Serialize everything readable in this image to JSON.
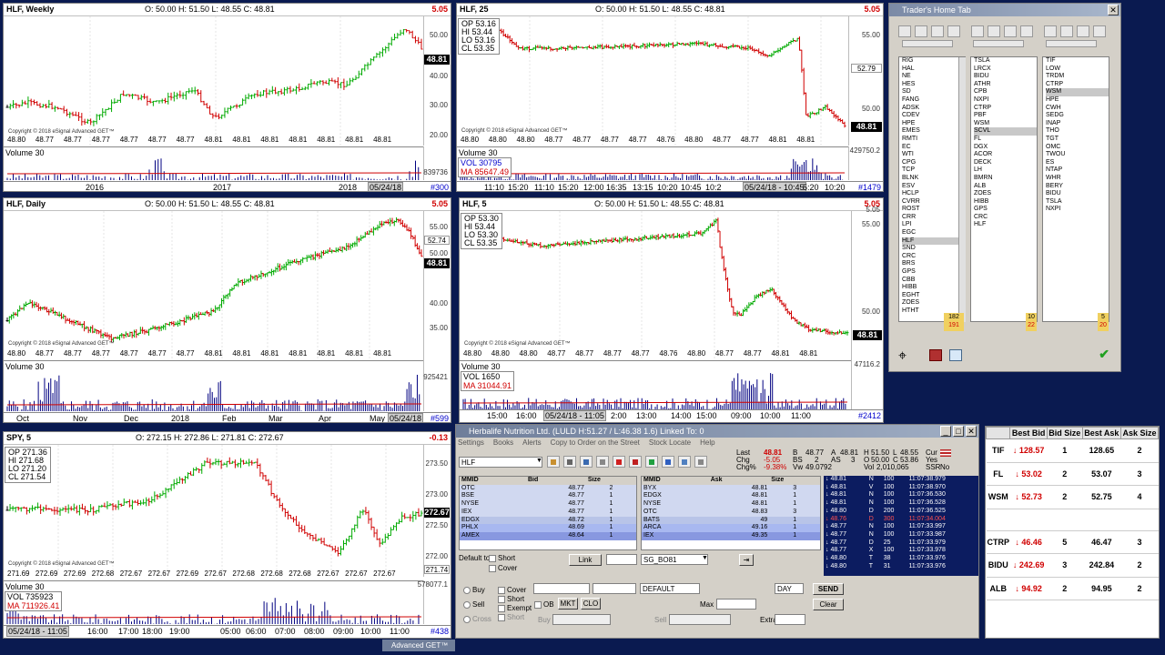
{
  "colors": {
    "up": "#00aa00",
    "down": "#d00000",
    "neutral": "#000000"
  },
  "charts": {
    "weekly": {
      "symbol": "HLF, Weekly",
      "ohlc": "O: 50.00    H: 51.50    L: 48.55    C: 48.81",
      "change": "5.05",
      "last": "48.81",
      "ticks": [
        "50.00",
        "40.00",
        "30.00",
        "20.00"
      ],
      "prices": [
        "48.80",
        "48.77",
        "48.77",
        "48.77",
        "48.77",
        "48.77",
        "48.77",
        "48.81",
        "48.81",
        "48.81",
        "48.81",
        "48.81",
        "48.81",
        "48.81"
      ],
      "vol_label": "Volume 30",
      "vol_value": "839736",
      "xlabels": [
        "2016",
        "2017",
        "2018"
      ],
      "xcur": "05/24/18",
      "count": "#300",
      "copyright": "Copyright © 2018 eSignal Advanced GET™"
    },
    "daily": {
      "symbol": "HLF, Daily",
      "ohlc": "O: 50.00    H: 51.50    L: 48.55    C: 48.81",
      "change": "5.05",
      "last": "48.81",
      "ticks": [
        "55.00",
        "52.74",
        "50.00",
        "40.00",
        "35.00"
      ],
      "prices": [
        "48.80",
        "48.77",
        "48.77",
        "48.77",
        "48.77",
        "48.77",
        "48.77",
        "48.81",
        "48.81",
        "48.81",
        "48.81",
        "48.81",
        "48.81",
        "48.81"
      ],
      "vol_label": "Volume 30",
      "vol_value": "925421",
      "xlabels": [
        "Oct",
        "Nov",
        "Dec",
        "2018",
        "Feb",
        "Mar",
        "Apr",
        "May"
      ],
      "xcur": "05/24/18",
      "count": "#599",
      "copyright": "Copyright © 2018 eSignal Advanced GET™"
    },
    "spy": {
      "symbol": "SPY, 5",
      "ohlc": "O: 272.15    H: 272.86    L: 271.81    C: 272.67",
      "change": "-0.13",
      "last": "272.67",
      "lvl": "271.74",
      "ticks": [
        "273.50",
        "273.00",
        "272.50",
        "272.00"
      ],
      "op": "OP 271.36",
      "hi": "HI  271.68",
      "lo": "LO  271.20",
      "cl": "CL  271.54",
      "prices": [
        "271.69",
        "272.69",
        "272.69",
        "272.68",
        "272.67",
        "272.67",
        "272.69",
        "272.67",
        "272.68",
        "272.68",
        "272.68",
        "272.67",
        "272.67",
        "272.67"
      ],
      "vol_label": "Volume 30",
      "vol_value": "578077.1",
      "vol": "VOL 735923",
      "ma": "MA  711926.41",
      "xlabels": [
        "16:00",
        "17:00",
        "18:00",
        "19:00",
        "05:00",
        "06:00",
        "07:00",
        "08:00",
        "09:00",
        "10:00",
        "11:00"
      ],
      "xcur": "05/24/18 - 11:05",
      "count": "#438",
      "copyright": "Copyright © 2018 eSignal Advanced GET™"
    },
    "hlf25": {
      "symbol": "HLF, 25",
      "ohlc": "O: 50.00    H: 51.50    L: 48.55    C: 48.81",
      "change": "5.05",
      "last": "48.81",
      "lvl": "52.79",
      "ticks": [
        "55.00",
        "50.00"
      ],
      "op": "OP 53.16",
      "hi": "HI   53.44",
      "lo": "LO  53.16",
      "cl": "CL  53.35",
      "prices": [
        "48.80",
        "48.80",
        "48.80",
        "48.77",
        "48.77",
        "48.77",
        "48.77",
        "48.76",
        "48.80",
        "48.77",
        "48.77",
        "48.81",
        "48.81"
      ],
      "vol_label": "Volume 30",
      "vol_value": "429750.2",
      "vol": "VOL 30795",
      "ma": "MA  85647.49",
      "xlabels": [
        "11:10",
        "15:20",
        "11:10",
        "15:20",
        "12:00",
        "16:35",
        "13:15",
        "10:20",
        "10:45",
        "10:2"
      ],
      "xcur": "05/24/18 - 10:45",
      "xtail": "5:20",
      "xend": "10:20",
      "count": "#1479",
      "copyright": "Copyright © 2018 eSignal Advanced GET™"
    },
    "hlf5": {
      "symbol": "HLF, 5",
      "ohlc": "O: 50.00    H: 51.50    L: 48.55    C: 48.81",
      "change": "5.05",
      "last": "48.81",
      "ticks": [
        "55.00",
        "50.00"
      ],
      "op": "OP 53.30",
      "hi": "HI   53.44",
      "lo": "LO  53.30",
      "cl": "CL  53.35",
      "prices": [
        "48.80",
        "48.80",
        "48.80",
        "48.77",
        "48.77",
        "48.77",
        "48.77",
        "48.76",
        "48.80",
        "48.77",
        "48.77",
        "48.81",
        "48.81"
      ],
      "vol_label": "Volume 30",
      "vol_value": "47116.2",
      "vol": "VOL 1650",
      "ma": "MA  31044.91",
      "xlabels": [
        "15:00",
        "16:00",
        "13:00",
        "14:00",
        "15:00",
        "09:00",
        "10:00",
        "11:00"
      ],
      "xcur": "05/24/18 - 11:05",
      "xmid": "2:00",
      "count": "#2412",
      "copyright": "Copyright © 2018 eSignal Advanced GET™"
    }
  },
  "traders_home": {
    "title": "Trader's Home Tab",
    "list1": [
      "RIG",
      "HAL",
      "NE",
      "HES",
      "SD",
      "FANG",
      "ADSK",
      "CDEV",
      "HPE",
      "EMES",
      "RMTI",
      "EC",
      "WTI",
      "CPG",
      "TCP",
      "BLNK",
      "ESV",
      "HCLP",
      "CVRR",
      "ROST",
      "CRR",
      "LPI",
      "EGC",
      "HLF",
      "SND",
      "CRC",
      "BRS",
      "GPS",
      "CBB",
      "HIBB",
      "EGHT",
      "ZOES",
      "HTHT"
    ],
    "list1_sel": "HLF",
    "list1_counts": [
      "182",
      "191"
    ],
    "list2": [
      "TSLA",
      "LRCX",
      "BIDU",
      "ATHR",
      "CPB",
      "NXPI",
      "CTRP",
      "PBF",
      "WSM",
      "SCVL",
      "FL",
      "DGX",
      "ACOR",
      "DECK",
      "LH",
      "BMRN",
      "ALB",
      "ZOES",
      "HIBB",
      "GPS",
      "CRC",
      "HLF"
    ],
    "list2_sel": "SCVL",
    "list2_counts": [
      "10",
      "22"
    ],
    "list3": [
      "TIF",
      "LOW",
      "TRDM",
      "CTRP",
      "WSM",
      "HPE",
      "CWH",
      "SEDG",
      "INAP",
      "THO",
      "TGT",
      "OMC",
      "TWOU",
      "ES",
      "NTAP",
      "WHR",
      "BERY",
      "BIDU",
      "TSLA",
      "NXPI"
    ],
    "list3_sel": "WSM",
    "list3_counts": [
      "5",
      "20"
    ]
  },
  "level2": {
    "title": "Herbalife Nutrition Ltd.  (LULD H:51.27 / L:46.38 1.6)   Linked To: 0",
    "menu": [
      "Settings",
      "Books",
      "Alerts",
      "Copy to Order on the Street",
      "Stock Locate",
      "Help"
    ],
    "symbol": "HLF",
    "quote": {
      "last_label": "Last",
      "last": "48.81",
      "chg_label": "Chg",
      "chg": "-5.05",
      "chgp_label": "Chg%",
      "chgp": "-9.38%",
      "b": "48.77",
      "a": "48.81",
      "bs": "2",
      "as": "3",
      "vw": "49.0792",
      "h": "51.50",
      "l": "48.55",
      "o": "50.00",
      "c": "53.86",
      "vol": "2,010,065",
      "cur": "Cur",
      "ssr": "Yes",
      "ssr_label": "SSR",
      "ssr_val": "No"
    },
    "bids": [
      [
        "OTC",
        "48.77",
        "2"
      ],
      [
        "BSE",
        "48.77",
        "1"
      ],
      [
        "NYSE",
        "48.77",
        "1"
      ],
      [
        "IEX",
        "48.77",
        "1"
      ],
      [
        "EDGX",
        "48.72",
        "1"
      ],
      [
        "PHLX",
        "48.69",
        "1"
      ],
      [
        "AMEX",
        "48.64",
        "1"
      ]
    ],
    "asks": [
      [
        "BYX",
        "48.81",
        "3"
      ],
      [
        "EDGX",
        "48.81",
        "1"
      ],
      [
        "NYSE",
        "48.81",
        "1"
      ],
      [
        "OTC",
        "48.83",
        "3"
      ],
      [
        "BATS",
        "49",
        "1"
      ],
      [
        "ARCA",
        "49.16",
        "1"
      ],
      [
        "IEX",
        "49.35",
        "1"
      ]
    ],
    "bid_head": [
      "MMID",
      "Bid",
      "Size"
    ],
    "ask_head": [
      "MMID",
      "Ask",
      "Size"
    ],
    "ts": [
      [
        "48.81",
        "N",
        "100",
        "11:07:38.979"
      ],
      [
        "48.81",
        "V",
        "100",
        "11:07:38.970"
      ],
      [
        "48.81",
        "N",
        "100",
        "11:07:36.530"
      ],
      [
        "48.81",
        "N",
        "100",
        "11:07:36.528"
      ],
      [
        "48.80",
        "D",
        "200",
        "11:07:36.525"
      ],
      [
        "48.76",
        "D",
        "300",
        "11:07:34.004"
      ],
      [
        "48.77",
        "N",
        "100",
        "11:07:33.997"
      ],
      [
        "48.77",
        "N",
        "100",
        "11:07:33.987"
      ],
      [
        "48.77",
        "D",
        "25",
        "11:07:33.979"
      ],
      [
        "48.77",
        "X",
        "100",
        "11:07:33.978"
      ],
      [
        "48.80",
        "T",
        "38",
        "11:07:33.976"
      ],
      [
        "48.80",
        "T",
        "31",
        "11:07:33.976"
      ]
    ],
    "default_to": "Default to",
    "short": "Short",
    "cover": "Cover",
    "link": "Link",
    "route": "SG_BO81",
    "buy": "Buy",
    "sell": "Sell",
    "cross": "Cross",
    "covr": "Cover",
    "shrt": "Short",
    "exempt": "Exempt",
    "shrt2": "Short",
    "ob": "OB",
    "mkt": "MKT",
    "clo": "CLO",
    "acct": "DEFAULT",
    "tif": "DAY",
    "send": "SEND",
    "clear": "Clear",
    "by": "Buy",
    "sl": "Sell",
    "max": "Max",
    "extra": "Extra"
  },
  "quotes": {
    "headers": [
      "",
      "Best Bid",
      "Bid Size",
      "Best Ask",
      "Ask Size"
    ],
    "rows": [
      [
        "TIF",
        "128.57",
        "1",
        "128.65",
        "2"
      ],
      [
        "FL",
        "53.02",
        "2",
        "53.07",
        "3"
      ],
      [
        "WSM",
        "52.73",
        "2",
        "52.75",
        "4"
      ],
      [
        "CTRP",
        "46.46",
        "5",
        "46.47",
        "3"
      ],
      [
        "BIDU",
        "242.69",
        "3",
        "242.84",
        "2"
      ],
      [
        "ALB",
        "94.92",
        "2",
        "94.95",
        "2"
      ]
    ]
  },
  "taskbar": {
    "label": "Advanced GET™"
  }
}
